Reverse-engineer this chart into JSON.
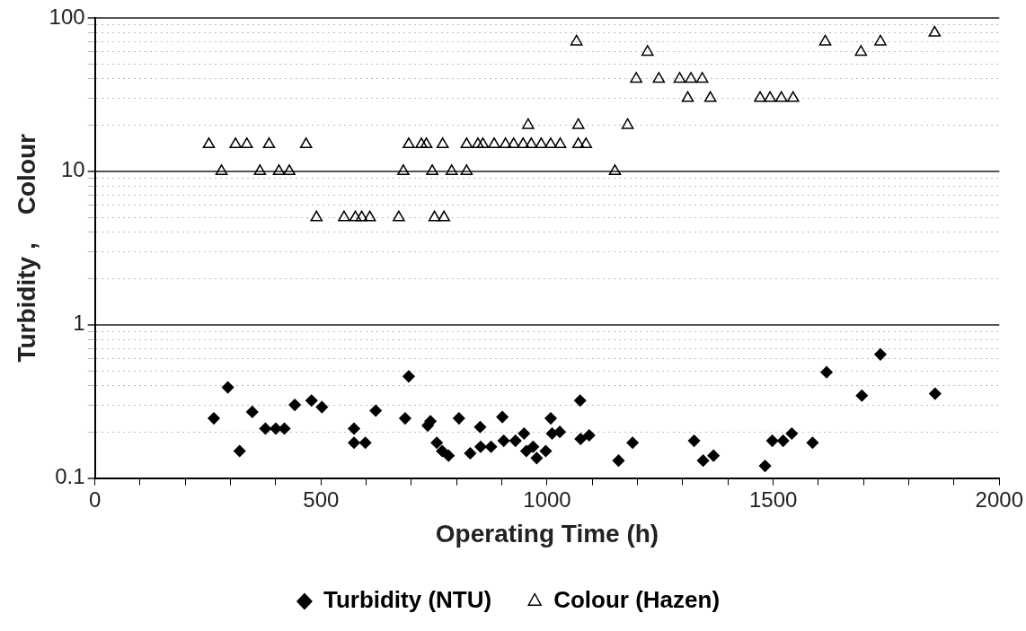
{
  "chart_data": {
    "type": "scatter",
    "xlabel": "Operating Time (h)",
    "ylabel": "Turbidity ,    Colour",
    "log": "y",
    "grid": "y",
    "legend": "bottom",
    "xlim": [
      0,
      2000
    ],
    "xticks": [
      0,
      {
        "value": 100,
        "label": null
      },
      {
        "value": 200,
        "label": null
      },
      {
        "value": 300,
        "label": null
      },
      {
        "value": 400,
        "label": null
      },
      500,
      {
        "value": 600,
        "label": null
      },
      {
        "value": 700,
        "label": null
      },
      {
        "value": 800,
        "label": null
      },
      {
        "value": 900,
        "label": null
      },
      1000,
      {
        "value": 1100,
        "label": null
      },
      {
        "value": 1200,
        "label": null
      },
      {
        "value": 1300,
        "label": null
      },
      {
        "value": 1400,
        "label": null
      },
      1500,
      {
        "value": 1600,
        "label": null
      },
      {
        "value": 1700,
        "label": null
      },
      {
        "value": 1800,
        "label": null
      },
      {
        "value": 1900,
        "label": null
      },
      2000
    ],
    "ylim": [
      0.1,
      100
    ],
    "yticks": [
      0.1,
      {
        "value": 0.2,
        "label": null
      },
      {
        "value": 0.3,
        "label": null
      },
      {
        "value": 0.4,
        "label": null
      },
      {
        "value": 0.5,
        "label": null
      },
      {
        "value": 0.6,
        "label": null
      },
      {
        "value": 0.7,
        "label": null
      },
      {
        "value": 0.8,
        "label": null
      },
      {
        "value": 0.9,
        "label": null
      },
      1,
      {
        "value": 2,
        "label": null
      },
      {
        "value": 3,
        "label": null
      },
      {
        "value": 4,
        "label": null
      },
      {
        "value": 5,
        "label": null
      },
      {
        "value": 6,
        "label": null
      },
      {
        "value": 7,
        "label": null
      },
      {
        "value": 8,
        "label": null
      },
      {
        "value": 9,
        "label": null
      },
      10,
      {
        "value": 20,
        "label": null
      },
      {
        "value": 30,
        "label": null
      },
      {
        "value": 40,
        "label": null
      },
      {
        "value": 50,
        "label": null
      },
      {
        "value": 60,
        "label": null
      },
      {
        "value": 70,
        "label": null
      },
      {
        "value": 80,
        "label": null
      },
      {
        "value": 90,
        "label": null
      },
      100
    ],
    "series": [
      {
        "name": "Turbidity (NTU)",
        "color": "#000000",
        "marker": "diamond",
        "x": [
          263,
          294,
          320,
          348,
          377,
          400,
          419,
          442,
          479,
          502,
          573,
          573,
          598,
          621,
          686,
          694,
          736,
          742,
          756,
          768,
          782,
          805,
          830,
          852,
          853,
          876,
          901,
          904,
          930,
          949,
          954,
          969,
          977,
          997,
          1008,
          1011,
          1028,
          1073,
          1074,
          1093,
          1158,
          1189,
          1325,
          1345,
          1368,
          1482,
          1498,
          1522,
          1541,
          1587,
          1618,
          1696,
          1737,
          1858
        ],
        "values": [
          0.245,
          0.39,
          0.15,
          0.27,
          0.21,
          0.21,
          0.21,
          0.3,
          0.32,
          0.29,
          0.21,
          0.17,
          0.17,
          0.275,
          0.245,
          0.46,
          0.22,
          0.235,
          0.17,
          0.15,
          0.14,
          0.245,
          0.145,
          0.215,
          0.16,
          0.16,
          0.25,
          0.175,
          0.175,
          0.195,
          0.15,
          0.16,
          0.135,
          0.15,
          0.245,
          0.195,
          0.2,
          0.32,
          0.18,
          0.19,
          0.13,
          0.17,
          0.175,
          0.13,
          0.14,
          0.12,
          0.175,
          0.175,
          0.195,
          0.17,
          0.49,
          0.345,
          0.64,
          0.355
        ]
      },
      {
        "name": "Colour (Hazen)",
        "color": "#000000",
        "marker": "triangle",
        "x": [
          252,
          311,
          336,
          385,
          467,
          694,
          722,
          733,
          769,
          822,
          847,
          858,
          883,
          908,
          926,
          947,
          965,
          987,
          1008,
          1029,
          1069,
          1086,
          958,
          1069,
          280,
          365,
          407,
          430,
          682,
          746,
          789,
          822,
          1150,
          490,
          551,
          576,
          590,
          608,
          672,
          751,
          772,
          1065,
          1178,
          1197,
          1222,
          1247,
          1293,
          1318,
          1343,
          1311,
          1361,
          1471,
          1493,
          1518,
          1544,
          1615,
          1694,
          1737,
          1857
        ],
        "values": [
          15,
          15,
          15,
          15,
          15,
          15,
          15,
          15,
          15,
          15,
          15,
          15,
          15,
          15,
          15,
          15,
          15,
          15,
          15,
          15,
          15,
          15,
          20,
          20,
          10,
          10,
          10,
          10,
          10,
          10,
          10,
          10,
          10,
          5,
          5,
          5,
          5,
          5,
          5,
          5,
          5,
          70,
          20,
          40,
          60,
          40,
          40,
          40,
          40,
          30,
          30,
          30,
          30,
          30,
          30,
          70,
          60,
          70,
          80
        ]
      }
    ]
  }
}
